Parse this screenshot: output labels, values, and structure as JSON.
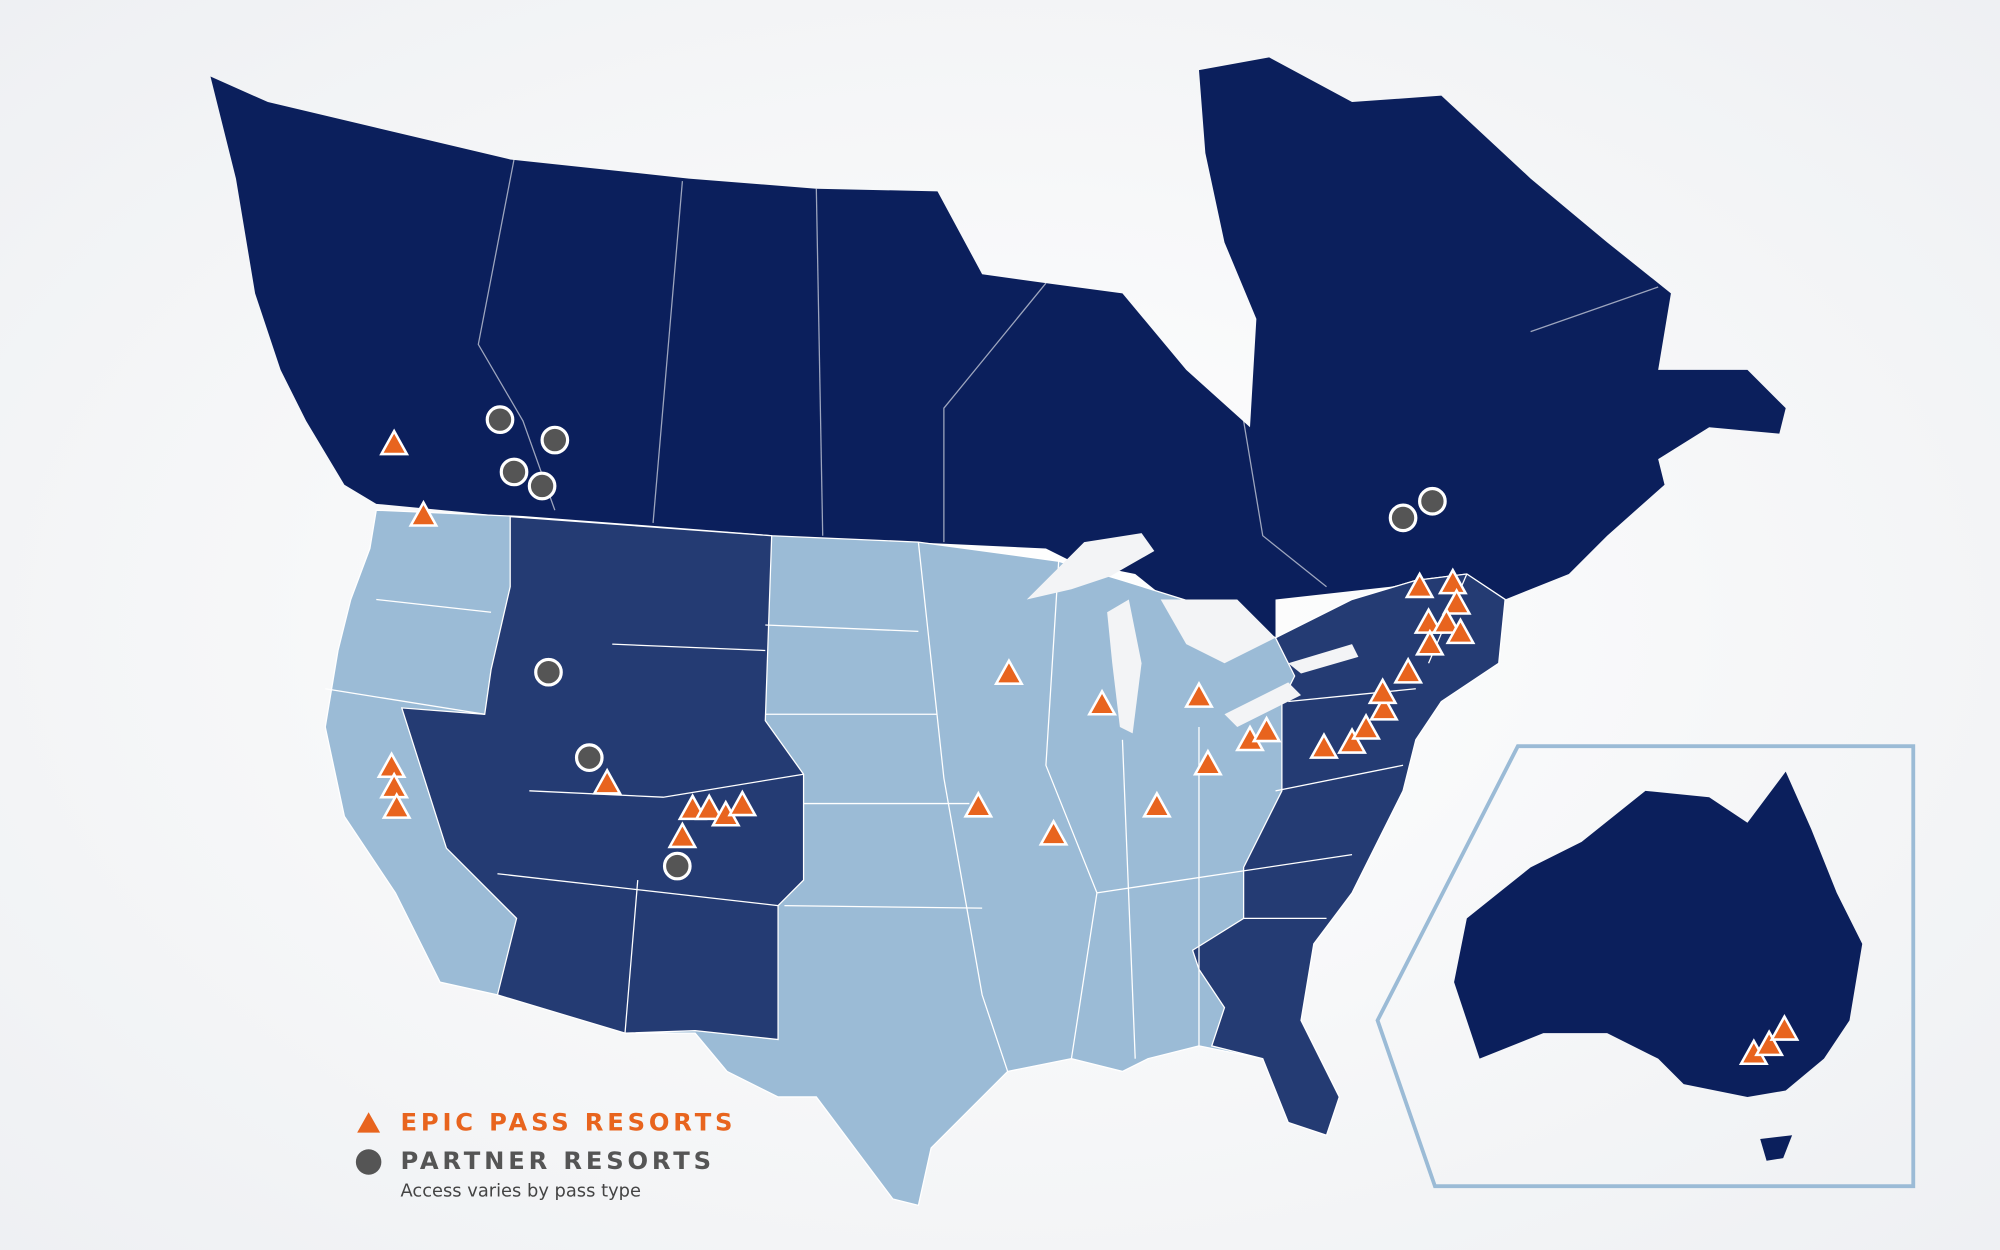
{
  "legend": {
    "items": [
      {
        "label": "EPIC PASS RESORTS"
      },
      {
        "label": "PARTNER RESORTS",
        "note": "Access varies by pass type"
      }
    ]
  }
}
